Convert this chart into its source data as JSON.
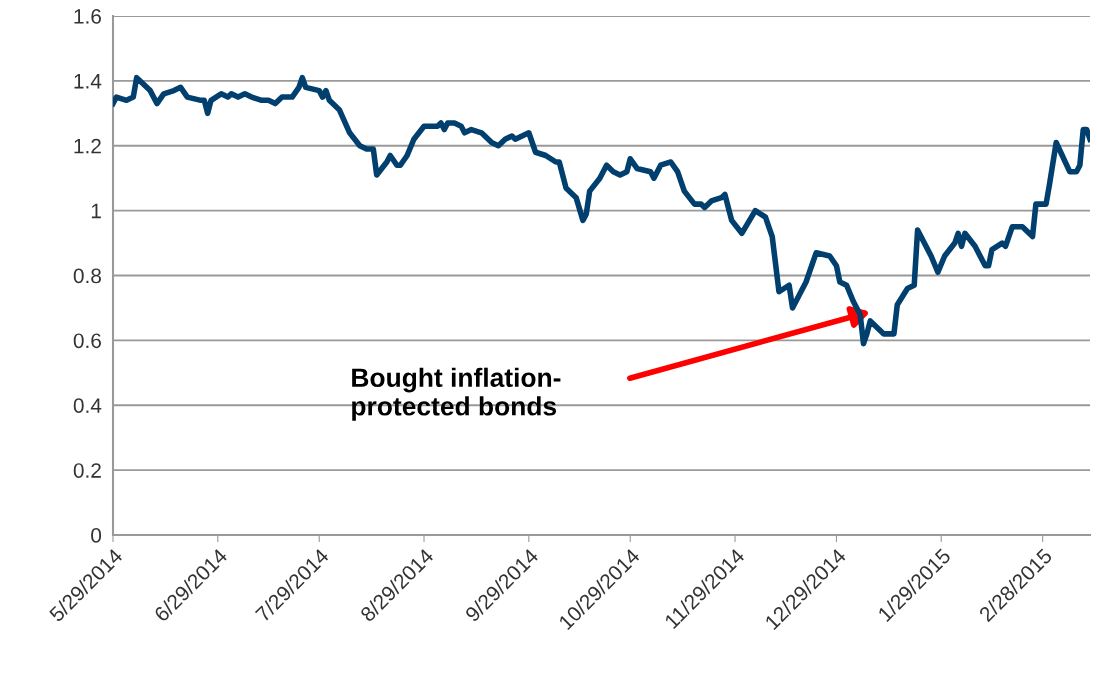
{
  "chart_data": {
    "type": "line",
    "x": [
      "2014-05-29",
      "2014-05-30",
      "2014-06-02",
      "2014-06-04",
      "2014-06-05",
      "2014-06-09",
      "2014-06-11",
      "2014-06-13",
      "2014-06-16",
      "2014-06-18",
      "2014-06-20",
      "2014-06-24",
      "2014-06-25",
      "2014-06-26",
      "2014-06-27",
      "2014-06-30",
      "2014-07-02",
      "2014-07-03",
      "2014-07-05",
      "2014-07-07",
      "2014-07-09",
      "2014-07-12",
      "2014-07-14",
      "2014-07-16",
      "2014-07-18",
      "2014-07-21",
      "2014-07-23",
      "2014-07-24",
      "2014-07-25",
      "2014-07-29",
      "2014-07-30",
      "2014-07-31",
      "2014-08-01",
      "2014-08-04",
      "2014-08-07",
      "2014-08-10",
      "2014-08-12",
      "2014-08-14",
      "2014-08-15",
      "2014-08-18",
      "2014-08-19",
      "2014-08-21",
      "2014-08-22",
      "2014-08-24",
      "2014-08-26",
      "2014-08-29",
      "2014-09-02",
      "2014-09-03",
      "2014-09-04",
      "2014-09-05",
      "2014-09-07",
      "2014-09-09",
      "2014-09-10",
      "2014-09-12",
      "2014-09-15",
      "2014-09-18",
      "2014-09-20",
      "2014-09-22",
      "2014-09-24",
      "2014-09-25",
      "2014-09-27",
      "2014-09-29",
      "2014-10-01",
      "2014-10-04",
      "2014-10-07",
      "2014-10-08",
      "2014-10-10",
      "2014-10-13",
      "2014-10-15",
      "2014-10-16",
      "2014-10-17",
      "2014-10-20",
      "2014-10-22",
      "2014-10-24",
      "2014-10-26",
      "2014-10-28",
      "2014-10-29",
      "2014-10-31",
      "2014-11-04",
      "2014-11-05",
      "2014-11-07",
      "2014-11-10",
      "2014-11-12",
      "2014-11-14",
      "2014-11-17",
      "2014-11-19",
      "2014-11-20",
      "2014-11-22",
      "2014-11-25",
      "2014-11-26",
      "2014-11-28",
      "2014-12-01",
      "2014-12-05",
      "2014-12-08",
      "2014-12-10",
      "2014-12-12",
      "2014-12-15",
      "2014-12-16",
      "2014-12-20",
      "2014-12-23",
      "2014-12-27",
      "2014-12-29",
      "2014-12-30",
      "2015-01-01",
      "2015-01-03",
      "2015-01-05",
      "2015-01-06",
      "2015-01-07",
      "2015-01-08",
      "2015-01-10",
      "2015-01-12",
      "2015-01-15",
      "2015-01-16",
      "2015-01-19",
      "2015-01-21",
      "2015-01-22",
      "2015-01-24",
      "2015-01-26",
      "2015-01-28",
      "2015-01-30",
      "2015-02-02",
      "2015-02-03",
      "2015-02-04",
      "2015-02-05",
      "2015-02-08",
      "2015-02-11",
      "2015-02-12",
      "2015-02-13",
      "2015-02-16",
      "2015-02-17",
      "2015-02-19",
      "2015-02-22",
      "2015-02-25",
      "2015-02-26",
      "2015-03-01",
      "2015-03-02",
      "2015-03-04",
      "2015-03-08",
      "2015-03-10",
      "2015-03-11",
      "2015-03-12",
      "2015-03-13",
      "2015-03-14"
    ],
    "series": [
      {
        "color": "#003f6e",
        "values": [
          1.33,
          1.35,
          1.34,
          1.35,
          1.41,
          1.37,
          1.33,
          1.36,
          1.37,
          1.38,
          1.35,
          1.34,
          1.34,
          1.3,
          1.34,
          1.36,
          1.35,
          1.36,
          1.35,
          1.36,
          1.35,
          1.34,
          1.34,
          1.33,
          1.35,
          1.35,
          1.38,
          1.41,
          1.38,
          1.37,
          1.35,
          1.37,
          1.34,
          1.31,
          1.24,
          1.2,
          1.19,
          1.19,
          1.11,
          1.15,
          1.17,
          1.14,
          1.14,
          1.17,
          1.22,
          1.26,
          1.26,
          1.27,
          1.25,
          1.27,
          1.27,
          1.26,
          1.24,
          1.25,
          1.24,
          1.21,
          1.2,
          1.22,
          1.23,
          1.22,
          1.23,
          1.24,
          1.18,
          1.17,
          1.15,
          1.15,
          1.07,
          1.04,
          0.97,
          0.99,
          1.06,
          1.1,
          1.14,
          1.12,
          1.11,
          1.12,
          1.16,
          1.13,
          1.12,
          1.1,
          1.14,
          1.15,
          1.12,
          1.06,
          1.02,
          1.02,
          1.01,
          1.03,
          1.04,
          1.05,
          0.97,
          0.93,
          1.0,
          0.98,
          0.92,
          0.75,
          0.77,
          0.7,
          0.78,
          0.87,
          0.86,
          0.83,
          0.78,
          0.77,
          0.72,
          0.68,
          0.59,
          0.62,
          0.66,
          0.64,
          0.62,
          0.62,
          0.71,
          0.76,
          0.77,
          0.94,
          0.9,
          0.86,
          0.81,
          0.86,
          0.9,
          0.93,
          0.89,
          0.93,
          0.89,
          0.83,
          0.83,
          0.88,
          0.9,
          0.89,
          0.95,
          0.95,
          0.92,
          1.02,
          1.02,
          1.08,
          1.21,
          1.12,
          1.12,
          1.14,
          1.25,
          1.25,
          1.22
        ]
      }
    ],
    "xlim": [
      "2014-05-29",
      "2015-03-14"
    ],
    "xticks": [
      {
        "value": "2014-05-29",
        "label": "5/29/2014"
      },
      {
        "value": "2014-06-29",
        "label": "6/29/2014"
      },
      {
        "value": "2014-07-29",
        "label": "7/29/2014"
      },
      {
        "value": "2014-08-29",
        "label": "8/29/2014"
      },
      {
        "value": "2014-09-29",
        "label": "9/29/2014"
      },
      {
        "value": "2014-10-29",
        "label": "10/29/2014"
      },
      {
        "value": "2014-11-29",
        "label": "11/29/2014"
      },
      {
        "value": "2014-12-29",
        "label": "12/29/2014"
      },
      {
        "value": "2015-01-29",
        "label": "1/29/2015"
      },
      {
        "value": "2015-02-28",
        "label": "2/28/2015"
      }
    ],
    "ylim": [
      0,
      1.6
    ],
    "yticks": [
      0,
      {
        "value": 0.2,
        "label": "0.2"
      },
      {
        "value": 0.4,
        "label": "0.4"
      },
      {
        "value": 0.6,
        "label": "0.6"
      },
      {
        "value": 0.8,
        "label": "0.8"
      },
      1,
      {
        "value": 1.2,
        "label": "1.2"
      },
      {
        "value": 1.4,
        "label": "1.4"
      },
      {
        "value": 1.6,
        "label": "1.6"
      }
    ],
    "grid": "y",
    "line_style": "solid",
    "annotations": [
      "Bought inflation-\nprotected bonds"
    ]
  }
}
